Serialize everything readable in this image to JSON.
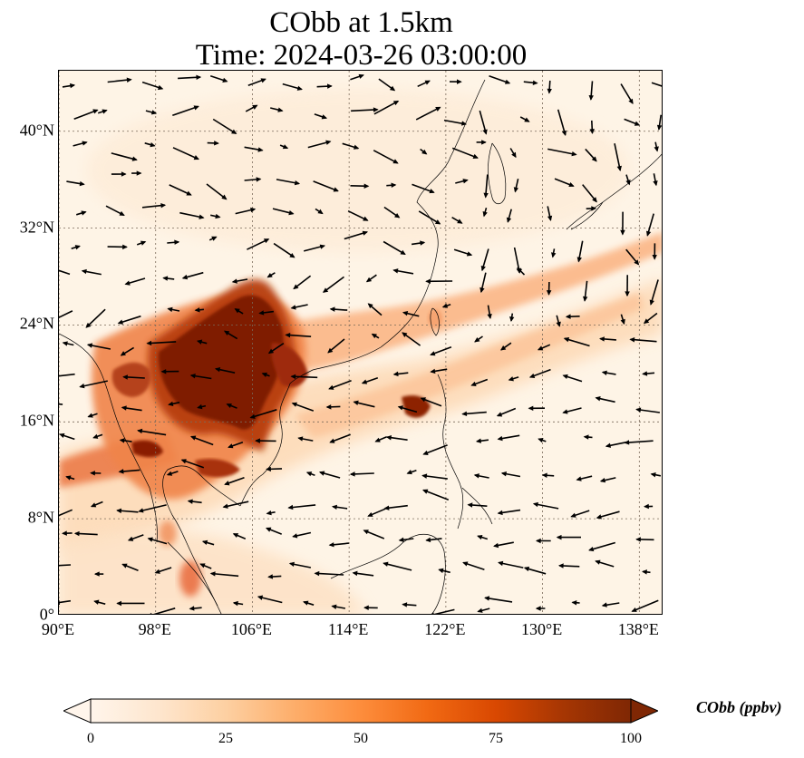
{
  "title": {
    "line1": "CObb at 1.5km",
    "line2": "Time: 2024-03-26 03:00:00"
  },
  "axes": {
    "x_ticks": [
      "90°E",
      "98°E",
      "106°E",
      "114°E",
      "122°E",
      "130°E",
      "138°E"
    ],
    "x_values": [
      90,
      98,
      106,
      114,
      122,
      130,
      138
    ],
    "y_ticks": [
      "40°N",
      "32°N",
      "24°N",
      "16°N",
      "8°N",
      "0°"
    ],
    "y_values": [
      40,
      32,
      24,
      16,
      8,
      0
    ],
    "lon_range": [
      90,
      140
    ],
    "lat_range": [
      0,
      45
    ],
    "grid": "dotted"
  },
  "colorbar": {
    "title": "CObb (ppbv)",
    "ticks": [
      "0",
      "25",
      "50",
      "75",
      "100"
    ],
    "tick_values": [
      0,
      25,
      50,
      75,
      100
    ],
    "range": [
      0,
      100
    ],
    "extend": "both",
    "colormap": [
      "#fff5eb",
      "#fee6ce",
      "#fdd0a2",
      "#fdae6b",
      "#fd8d3c",
      "#f16913",
      "#d94801",
      "#a63603",
      "#7f2704"
    ]
  },
  "map": {
    "background": "#fef4e6",
    "coastline_color": "#000000",
    "arrow_color": "#000000"
  }
}
